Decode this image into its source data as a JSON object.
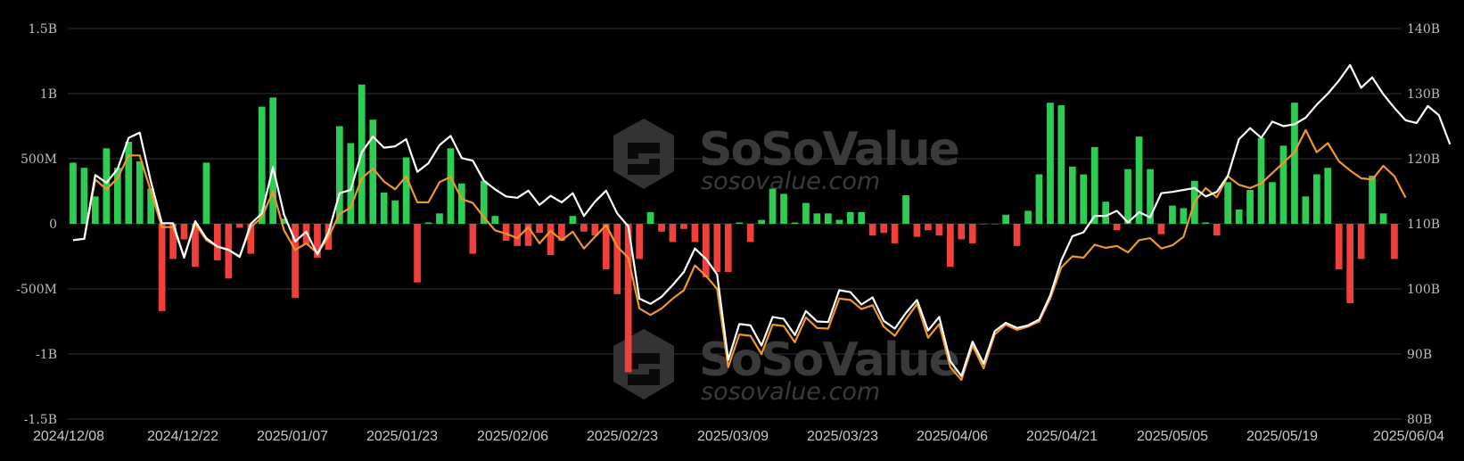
{
  "watermark": {
    "brand": "SoSoValue",
    "domain": "sosovalue.com"
  },
  "chart_data": {
    "type": "bar",
    "grid": true,
    "colors": {
      "positive": "#2ecc52",
      "negative": "#f0403c",
      "line_total": "#ffffff",
      "line_orange": "#f0962a",
      "grid": "#333333"
    },
    "left_axis": {
      "ticks": [
        "1.5B",
        "1B",
        "500M",
        "0",
        "-500M",
        "-1B",
        "-1.5B"
      ],
      "range": [
        -1.5,
        1.5
      ],
      "unit": "B"
    },
    "right_axis": {
      "ticks": [
        "140B",
        "130B",
        "120B",
        "110B",
        "100B",
        "90B",
        "80B"
      ],
      "range": [
        80,
        140
      ],
      "unit": "B"
    },
    "x_labels": [
      "2024/12/08",
      "2024/12/22",
      "2025/01/07",
      "2025/01/23",
      "2025/02/06",
      "2025/02/23",
      "2025/03/09",
      "2025/03/23",
      "2025/04/06",
      "2025/04/21",
      "2025/05/05",
      "2025/05/19",
      "2025/06/04"
    ],
    "bars": [
      0.47,
      0.43,
      0.21,
      0.58,
      0.43,
      0.63,
      0.48,
      0.27,
      -0.67,
      -0.27,
      -0.12,
      -0.33,
      0.47,
      -0.28,
      -0.42,
      -0.03,
      -0.23,
      0.9,
      0.97,
      0.04,
      -0.57,
      -0.16,
      -0.26,
      -0.2,
      0.75,
      0.62,
      1.07,
      0.8,
      0.24,
      0.18,
      0.51,
      -0.45,
      0.01,
      0.08,
      0.58,
      0.31,
      -0.23,
      0.33,
      0.06,
      -0.13,
      -0.17,
      -0.17,
      -0.07,
      -0.24,
      -0.13,
      0.06,
      -0.06,
      -0.09,
      -0.35,
      -0.54,
      -1.14,
      -0.27,
      0.09,
      -0.06,
      -0.14,
      -0.04,
      -0.14,
      -0.41,
      -0.37,
      -0.37,
      0.01,
      -0.14,
      0.03,
      0.27,
      0.23,
      0.01,
      0.16,
      0.08,
      0.08,
      0.03,
      0.09,
      0.09,
      -0.09,
      -0.07,
      -0.15,
      0.22,
      -0.1,
      -0.05,
      -0.09,
      -0.33,
      -0.12,
      -0.15,
      0.0,
      0.0,
      0.07,
      -0.17,
      0.1,
      0.38,
      0.93,
      0.91,
      0.44,
      0.38,
      0.59,
      0.17,
      -0.05,
      0.42,
      0.67,
      0.42,
      -0.08,
      0.14,
      0.12,
      0.33,
      0.01,
      -0.09,
      0.32,
      0.11,
      0.26,
      0.66,
      0.32,
      0.6,
      0.93,
      0.21,
      0.38,
      0.43,
      -0.35,
      -0.61,
      -0.27,
      0.37,
      0.08,
      -0.27
    ],
    "series": [
      {
        "values": [
          107.5,
          107.7,
          117.5,
          116.3,
          118.4,
          123.2,
          124.0,
          116.5,
          110.1,
          110.1,
          104.8,
          110.4,
          107.8,
          106.5,
          106.0,
          104.9,
          110.0,
          111.6,
          118.7,
          111.4,
          107.3,
          108.8,
          105.3,
          108.7,
          114.7,
          115.2,
          121.0,
          123.4,
          121.7,
          121.9,
          123.0,
          118.0,
          119.3,
          122.1,
          123.5,
          120.1,
          119.7,
          116.6,
          115.3,
          114.2,
          114.0,
          115.1,
          112.9,
          114.3,
          113.3,
          114.7,
          111.2,
          113.4,
          115.1,
          111.6,
          109.6,
          98.5,
          97.7,
          98.8,
          100.6,
          102.6,
          106.2,
          104.6,
          102.2,
          89.1,
          94.6,
          94.4,
          91.3,
          95.7,
          95.4,
          92.9,
          96.6,
          95.0,
          94.9,
          99.8,
          99.5,
          97.6,
          98.7,
          95.1,
          93.9,
          96.3,
          98.3,
          93.6,
          95.7,
          88.9,
          86.6,
          91.9,
          88.5,
          93.5,
          94.8,
          94.0,
          94.4,
          95.3,
          99.0,
          104.4,
          108.1,
          108.7,
          111.2,
          111.2,
          112.0,
          110.2,
          111.8,
          111.0,
          114.7,
          114.9,
          115.2,
          115.5,
          114.2,
          114.9,
          117.4,
          123.0,
          124.7,
          123.2,
          125.7,
          125.0,
          125.3,
          126.3,
          128.3,
          130.0,
          132.0,
          134.4,
          130.9,
          132.5,
          129.9,
          127.8,
          125.9,
          125.5,
          128.1,
          126.7,
          122.2
        ]
      },
      {
        "values": [
          107.5,
          107.7,
          116.8,
          115.3,
          117.0,
          120.5,
          120.5,
          115.0,
          109.5,
          109.5,
          105.0,
          110.0,
          107.5,
          106.5,
          106.0,
          105.0,
          109.5,
          111.0,
          115.0,
          109.0,
          106.0,
          107.0,
          105.5,
          108.0,
          111.5,
          112.5,
          117.0,
          118.5,
          116.5,
          115.3,
          117.3,
          113.3,
          113.3,
          116.4,
          117.2,
          113.8,
          113.2,
          111.0,
          109.0,
          108.5,
          107.8,
          109.5,
          107.0,
          108.9,
          107.5,
          108.8,
          106.2,
          108.0,
          109.8,
          106.5,
          104.8,
          97.0,
          96.0,
          97.0,
          98.5,
          99.8,
          103.6,
          102.0,
          100.0,
          88.0,
          93.0,
          92.8,
          90.0,
          94.5,
          94.3,
          91.8,
          95.6,
          94.0,
          93.9,
          98.5,
          98.3,
          96.9,
          97.5,
          94.2,
          92.8,
          95.3,
          97.7,
          92.5,
          94.6,
          88.0,
          86.0,
          91.3,
          87.8,
          93.0,
          94.5,
          93.7,
          94.2,
          95.0,
          98.5,
          103.3,
          105.0,
          104.8,
          106.8,
          106.3,
          106.6,
          105.6,
          107.5,
          107.8,
          106.2,
          106.7,
          108.0,
          113.4,
          115.5,
          114.1,
          117.3,
          116.0,
          115.5,
          116.2,
          117.8,
          119.4,
          121.0,
          124.4,
          121.0,
          122.4,
          119.6,
          118.2,
          117.0,
          116.8,
          118.9,
          117.3,
          114.0
        ]
      }
    ]
  }
}
